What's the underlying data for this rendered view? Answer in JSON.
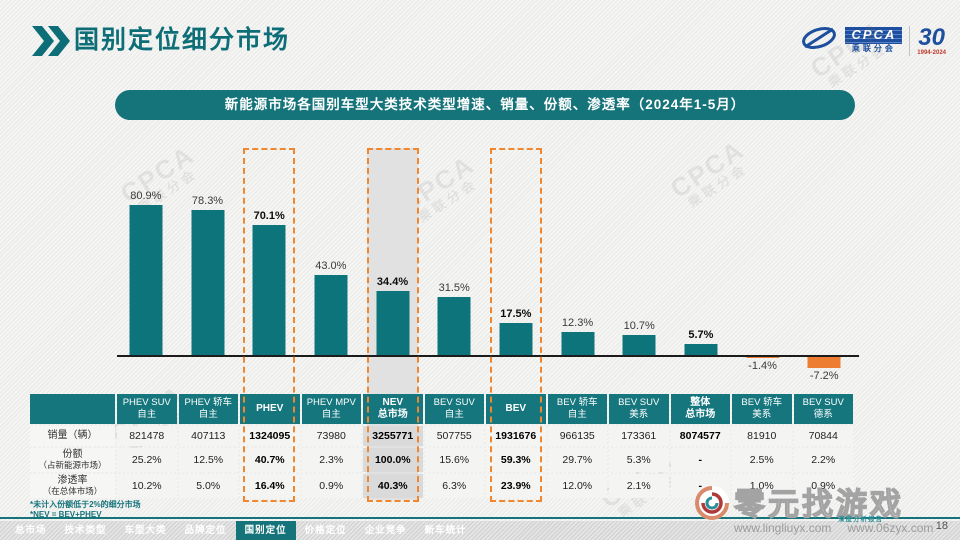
{
  "header": {
    "title": "国别定位细分市场",
    "logo": {
      "cpca": "CPCA",
      "sub": "乘联分会",
      "anniversary": "30",
      "years": "1994-2024"
    }
  },
  "chart_data": {
    "type": "bar",
    "title": "新能源市场各国别车型大类技术类型增速、销量、份额、渗透率（2024年1-5月）",
    "unit": "%",
    "ylim": [
      -10,
      90
    ],
    "grid": false,
    "categories": [
      "PHEV SUV 自主",
      "PHEV 轿车 自主",
      "PHEV",
      "PHEV MPV 自主",
      "NEV 总市场",
      "BEV SUV 自主",
      "BEV",
      "BEV 轿车 自主",
      "BEV SUV 美系",
      "整体 总市场",
      "BEV 轿车 美系",
      "BEV SUV 德系"
    ],
    "values": [
      80.9,
      78.3,
      70.1,
      43.0,
      34.4,
      31.5,
      17.5,
      12.3,
      10.7,
      5.7,
      -1.4,
      -7.2
    ],
    "labels": [
      "80.9%",
      "78.3%",
      "70.1%",
      "43.0%",
      "34.4%",
      "31.5%",
      "17.5%",
      "12.3%",
      "10.7%",
      "5.7%",
      "-1.4%",
      "-7.2%"
    ],
    "bold": [
      false,
      false,
      true,
      false,
      true,
      false,
      true,
      false,
      false,
      true,
      false,
      false
    ],
    "highlight_columns": [
      2,
      4,
      6
    ],
    "shaded_column": 4,
    "bar_color": "#0e747c",
    "negative_color": "#ed7d31",
    "highlight_border_color": "#f0872f"
  },
  "table": {
    "col_headers": [
      {
        "l1": "PHEV SUV",
        "l2": "自主"
      },
      {
        "l1": "PHEV 轿车",
        "l2": "自主"
      },
      {
        "l1": "PHEV",
        "l2": ""
      },
      {
        "l1": "PHEV MPV",
        "l2": "自主"
      },
      {
        "l1": "NEV",
        "l2": "总市场"
      },
      {
        "l1": "BEV SUV",
        "l2": "自主"
      },
      {
        "l1": "BEV",
        "l2": ""
      },
      {
        "l1": "BEV 轿车",
        "l2": "自主"
      },
      {
        "l1": "BEV SUV",
        "l2": "美系"
      },
      {
        "l1": "整体",
        "l2": "总市场"
      },
      {
        "l1": "BEV 轿车",
        "l2": "美系"
      },
      {
        "l1": "BEV SUV",
        "l2": "德系"
      }
    ],
    "rows": [
      {
        "label1": "销量（辆）",
        "label2": "",
        "cells": [
          "821478",
          "407113",
          "1324095",
          "73980",
          "3255771",
          "507755",
          "1931676",
          "966135",
          "173361",
          "8074577",
          "81910",
          "70844"
        ]
      },
      {
        "label1": "份额",
        "label2": "（占新能源市场）",
        "cells": [
          "25.2%",
          "12.5%",
          "40.7%",
          "2.3%",
          "100.0%",
          "15.6%",
          "59.3%",
          "29.7%",
          "5.3%",
          "-",
          "2.5%",
          "2.2%"
        ]
      },
      {
        "label1": "渗透率",
        "label2": "（在总体市场）",
        "cells": [
          "10.2%",
          "5.0%",
          "16.4%",
          "0.9%",
          "40.3%",
          "6.3%",
          "23.9%",
          "12.0%",
          "2.1%",
          "-",
          "1.0%",
          "0.9%"
        ]
      }
    ],
    "bold_columns": [
      2,
      4,
      6,
      9
    ]
  },
  "footnotes": [
    "*未计入份额低于2%的细分市场",
    "*NEV = BEV+PHEV"
  ],
  "nav": {
    "items": [
      "总市场",
      "技术类型",
      "车型大类",
      "品牌定位",
      "国别定位",
      "价格定位",
      "企业竞争",
      "新车统计"
    ],
    "active_index": 4
  },
  "watermark": {
    "brand": "零元找游戏",
    "tagline": "深度分析报告",
    "url1": "www.lingliuyx.com",
    "url2": "www.06zyx.com",
    "page": "18",
    "ghost_line1": "CPCA",
    "ghost_line2": "乘联分会"
  }
}
